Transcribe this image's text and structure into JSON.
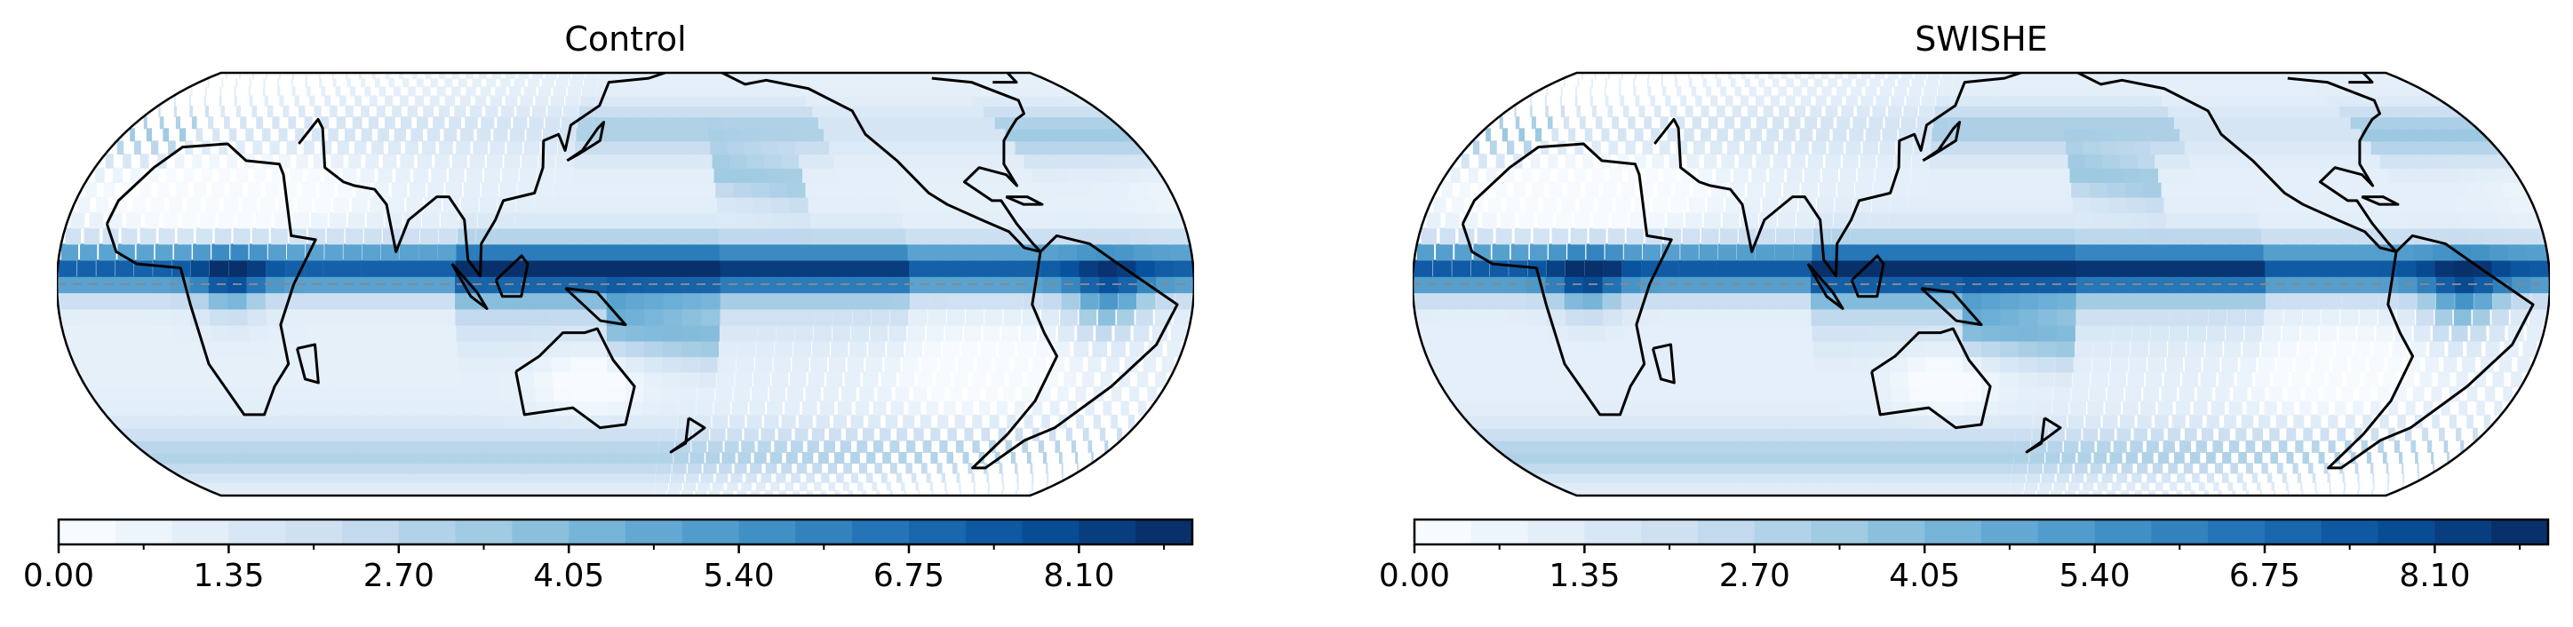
{
  "panels": [
    {
      "title": "Control"
    },
    {
      "title": "SWISHE"
    }
  ],
  "colorbar": {
    "colormap": "Blues",
    "vmin": 0.0,
    "vmax": 9.0,
    "levels": 20,
    "tick_labels": [
      "0.00",
      "1.35",
      "2.70",
      "4.05",
      "5.40",
      "6.75",
      "8.10"
    ]
  },
  "map": {
    "projection": "Eckert IV",
    "equator_line": "dashed",
    "itcz_bands": "Indo-Pacific and Atlantic"
  },
  "colors": {
    "low": "#f7fbff",
    "mid": "#6baed6",
    "high": "#08306b",
    "coast": "#000000"
  }
}
